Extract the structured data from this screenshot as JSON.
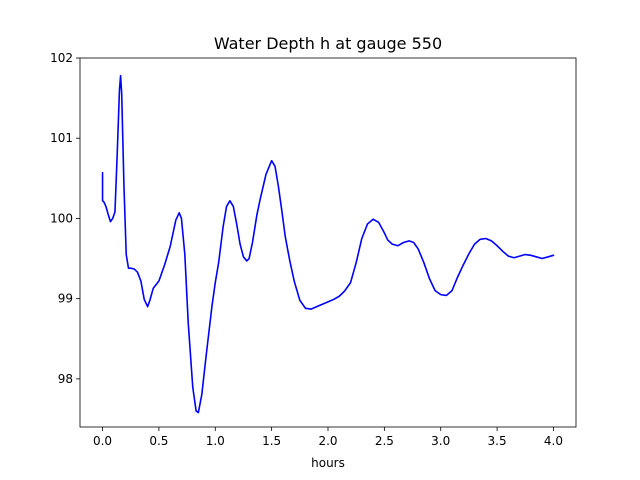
{
  "chart_data": {
    "type": "line",
    "title": "Water Depth h at gauge 550",
    "xlabel": "hours",
    "ylabel": "",
    "xlim": [
      -0.2,
      4.2
    ],
    "ylim": [
      97.4,
      102.0
    ],
    "xticks": [
      0.0,
      0.5,
      1.0,
      1.5,
      2.0,
      2.5,
      3.0,
      3.5,
      4.0
    ],
    "xtick_labels": [
      "0.0",
      "0.5",
      "1.0",
      "1.5",
      "2.0",
      "2.5",
      "3.0",
      "3.5",
      "4.0"
    ],
    "yticks": [
      98,
      99,
      100,
      101,
      102
    ],
    "ytick_labels": [
      "98",
      "99",
      "100",
      "101",
      "102"
    ],
    "grid": false,
    "legend": "none",
    "series": [
      {
        "color": "#0000ff",
        "x": [
          0.0,
          0.0,
          0.01,
          0.03,
          0.05,
          0.07,
          0.09,
          0.11,
          0.13,
          0.15,
          0.16,
          0.17,
          0.19,
          0.21,
          0.23,
          0.25,
          0.28,
          0.31,
          0.34,
          0.37,
          0.4,
          0.42,
          0.45,
          0.5,
          0.55,
          0.6,
          0.65,
          0.68,
          0.7,
          0.73,
          0.76,
          0.8,
          0.83,
          0.85,
          0.88,
          0.92,
          0.97,
          1.0,
          1.03,
          1.07,
          1.1,
          1.13,
          1.16,
          1.19,
          1.22,
          1.25,
          1.28,
          1.3,
          1.33,
          1.37,
          1.4,
          1.45,
          1.5,
          1.53,
          1.56,
          1.59,
          1.62,
          1.66,
          1.7,
          1.75,
          1.8,
          1.85,
          1.9,
          1.95,
          2.0,
          2.05,
          2.1,
          2.15,
          2.2,
          2.25,
          2.3,
          2.35,
          2.4,
          2.45,
          2.5,
          2.53,
          2.57,
          2.62,
          2.67,
          2.72,
          2.76,
          2.8,
          2.85,
          2.9,
          2.95,
          3.0,
          3.05,
          3.1,
          3.15,
          3.2,
          3.25,
          3.3,
          3.35,
          3.4,
          3.45,
          3.5,
          3.55,
          3.6,
          3.65,
          3.7,
          3.75,
          3.8,
          3.85,
          3.9,
          3.95,
          4.0
        ],
        "y": [
          100.57,
          100.22,
          100.21,
          100.15,
          100.05,
          99.96,
          100.0,
          100.08,
          100.8,
          101.6,
          101.78,
          101.55,
          100.4,
          99.55,
          99.38,
          99.38,
          99.37,
          99.33,
          99.22,
          98.99,
          98.9,
          98.98,
          99.13,
          99.22,
          99.42,
          99.65,
          99.98,
          100.07,
          100.0,
          99.55,
          98.7,
          97.9,
          97.6,
          97.58,
          97.8,
          98.3,
          98.9,
          99.2,
          99.45,
          99.9,
          100.15,
          100.22,
          100.15,
          99.93,
          99.68,
          99.52,
          99.47,
          99.5,
          99.7,
          100.05,
          100.25,
          100.55,
          100.72,
          100.65,
          100.4,
          100.1,
          99.78,
          99.48,
          99.22,
          98.98,
          98.88,
          98.87,
          98.9,
          98.93,
          98.96,
          98.99,
          99.03,
          99.1,
          99.2,
          99.45,
          99.75,
          99.93,
          99.99,
          99.95,
          99.82,
          99.73,
          99.68,
          99.66,
          99.7,
          99.72,
          99.7,
          99.62,
          99.45,
          99.25,
          99.1,
          99.05,
          99.04,
          99.1,
          99.27,
          99.42,
          99.56,
          99.68,
          99.74,
          99.75,
          99.72,
          99.66,
          99.59,
          99.53,
          99.51,
          99.53,
          99.55,
          99.54,
          99.52,
          99.5,
          99.52,
          99.54
        ]
      }
    ]
  }
}
